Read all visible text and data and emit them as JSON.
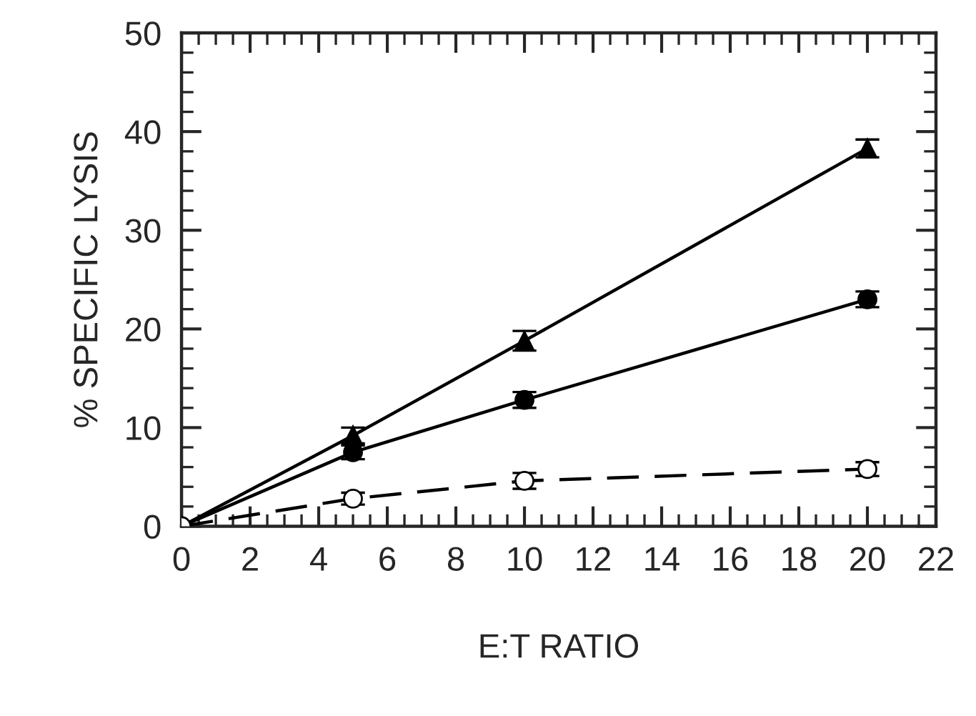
{
  "chart_data": {
    "type": "line",
    "xlabel": "E:T RATIO",
    "ylabel": "% SPECIFIC LYSIS",
    "x": [
      0,
      5,
      10,
      20
    ],
    "series": [
      {
        "color": "#000000",
        "values": [
          0,
          9.2,
          18.8,
          38.3
        ],
        "errors": [
          null,
          0.8,
          1.0,
          0.9
        ],
        "marker": "triangle",
        "line_style": "solid"
      },
      {
        "color": "#000000",
        "values": [
          0,
          7.5,
          12.8,
          23.0
        ],
        "errors": [
          null,
          0.7,
          0.8,
          0.8
        ],
        "marker": "circle",
        "line_style": "solid"
      },
      {
        "color": "#000000",
        "values": [
          0,
          2.8,
          4.6,
          5.8
        ],
        "errors": [
          null,
          0.6,
          0.8,
          0.7
        ],
        "marker": "circle",
        "line_style": "dashed"
      }
    ],
    "xlim": [
      0,
      22
    ],
    "xticks": [
      0,
      2,
      4,
      6,
      8,
      10,
      12,
      14,
      16,
      18,
      20,
      22
    ],
    "ylim": [
      0,
      50
    ],
    "yticks": [
      0,
      10,
      20,
      30,
      40,
      50
    ],
    "grid": false,
    "legend": false
  }
}
